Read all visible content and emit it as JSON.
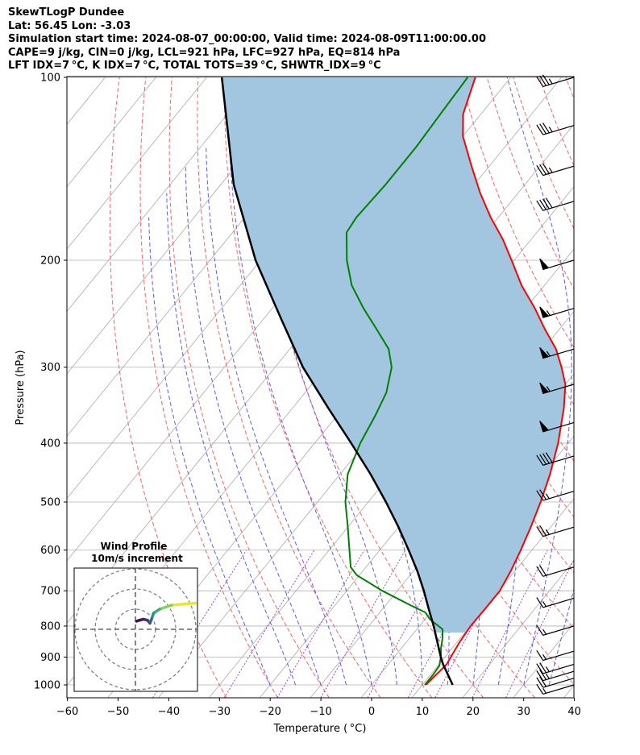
{
  "header": {
    "line1": "SkewTLogP Dundee",
    "line2": "Lat: 56.45   Lon: -3.03",
    "line3": "Simulation start time: 2024-08-07_00:00:00, Valid time: 2024-08-09T11:00:00.00",
    "line4": "CAPE=9 j/kg, CIN=0 j/kg, LCL=921 hPa, LFC=927 hPa, EQ=814 hPa",
    "line5": "LFT IDX=7 °C, K IDX=7 °C, TOTAL TOTS=39 °C, SHWTR_IDX=9 °C"
  },
  "colors": {
    "temperature": "#ff0000",
    "dewpoint": "#008000",
    "parcel": "#000000",
    "cape_fill": "#a3c6e0",
    "dry_adiabat": "#ff6060",
    "moist_adiabat": "#5a5aff",
    "isotherm": "#aaaaaa",
    "mixing_ratio": "#9933cc"
  },
  "chart_data": {
    "type": "skewt",
    "xlabel": "Temperature ( °C)",
    "ylabel": "Pressure (hPa)",
    "xlim": [
      -60,
      40
    ],
    "ylim": [
      1040,
      100
    ],
    "xticks": [
      -60,
      -50,
      -40,
      -30,
      -20,
      -10,
      0,
      10,
      20,
      30,
      40
    ],
    "yticks": [
      100,
      200,
      300,
      400,
      500,
      600,
      700,
      800,
      900,
      1000
    ],
    "grid": true,
    "series": [
      {
        "name": "temperature",
        "points": [
          [
            1000,
            10.7
          ],
          [
            925,
            11.5
          ],
          [
            880,
            10.9
          ],
          [
            850,
            10.5
          ],
          [
            800,
            10.1
          ],
          [
            750,
            10.2
          ],
          [
            700,
            10.2
          ],
          [
            650,
            9.2
          ],
          [
            600,
            7.8
          ],
          [
            550,
            6.1
          ],
          [
            500,
            4.0
          ],
          [
            450,
            1.4
          ],
          [
            400,
            -2.0
          ],
          [
            350,
            -6.5
          ],
          [
            320,
            -10.0
          ],
          [
            300,
            -13.5
          ],
          [
            280,
            -17.5
          ],
          [
            260,
            -22.8
          ],
          [
            240,
            -28.2
          ],
          [
            220,
            -34.5
          ],
          [
            200,
            -40.5
          ],
          [
            185,
            -45.5
          ],
          [
            170,
            -51.5
          ],
          [
            155,
            -57.5
          ],
          [
            140,
            -63.5
          ],
          [
            125,
            -70.0
          ],
          [
            115,
            -73.5
          ],
          [
            100,
            -77.0
          ]
        ]
      },
      {
        "name": "dewpoint",
        "points": [
          [
            1000,
            10.5
          ],
          [
            960,
            10.5
          ],
          [
            930,
            10.3
          ],
          [
            900,
            9.2
          ],
          [
            870,
            7.8
          ],
          [
            840,
            6.6
          ],
          [
            810,
            5.1
          ],
          [
            780,
            1.0
          ],
          [
            760,
            -1.0
          ],
          [
            740,
            -5.0
          ],
          [
            700,
            -13.0
          ],
          [
            660,
            -20.5
          ],
          [
            640,
            -23.0
          ],
          [
            600,
            -26.0
          ],
          [
            550,
            -30.0
          ],
          [
            500,
            -34.5
          ],
          [
            450,
            -38.5
          ],
          [
            400,
            -41.0
          ],
          [
            360,
            -42.5
          ],
          [
            330,
            -44.0
          ],
          [
            300,
            -47.0
          ],
          [
            280,
            -50.5
          ],
          [
            260,
            -56.0
          ],
          [
            240,
            -62.0
          ],
          [
            220,
            -68.0
          ],
          [
            200,
            -73.0
          ],
          [
            180,
            -77.5
          ],
          [
            170,
            -78.0
          ],
          [
            150,
            -77.5
          ],
          [
            130,
            -77.5
          ],
          [
            115,
            -78.0
          ],
          [
            100,
            -78.5
          ]
        ]
      },
      {
        "name": "parcel",
        "points": [
          [
            1000,
            16.0
          ],
          [
            925,
            10.8
          ],
          [
            900,
            9.2
          ],
          [
            850,
            6.1
          ],
          [
            800,
            2.8
          ],
          [
            750,
            -0.9
          ],
          [
            700,
            -4.8
          ],
          [
            650,
            -9.2
          ],
          [
            600,
            -14.3
          ],
          [
            550,
            -20.0
          ],
          [
            500,
            -26.5
          ],
          [
            450,
            -34.0
          ],
          [
            400,
            -42.8
          ],
          [
            350,
            -53.0
          ],
          [
            300,
            -64.5
          ],
          [
            250,
            -76.5
          ],
          [
            200,
            -91.0
          ],
          [
            150,
            -107.5
          ],
          [
            100,
            -127.0
          ]
        ]
      }
    ],
    "wind_barbs": [
      {
        "p": 100,
        "kt": 35
      },
      {
        "p": 120,
        "kt": 35
      },
      {
        "p": 140,
        "kt": 35
      },
      {
        "p": 160,
        "kt": 40
      },
      {
        "p": 200,
        "kt": 50
      },
      {
        "p": 240,
        "kt": 55
      },
      {
        "p": 280,
        "kt": 55
      },
      {
        "p": 320,
        "kt": 55
      },
      {
        "p": 370,
        "kt": 50
      },
      {
        "p": 420,
        "kt": 40
      },
      {
        "p": 480,
        "kt": 25
      },
      {
        "p": 550,
        "kt": 25
      },
      {
        "p": 640,
        "kt": 20
      },
      {
        "p": 720,
        "kt": 15
      },
      {
        "p": 800,
        "kt": 15
      },
      {
        "p": 880,
        "kt": 15
      },
      {
        "p": 925,
        "kt": 25
      },
      {
        "p": 950,
        "kt": 25
      },
      {
        "p": 975,
        "kt": 20
      },
      {
        "p": 1000,
        "kt": 15
      }
    ],
    "hodograph": {
      "title": "Wind Profile",
      "subtitle": "10m/s increment",
      "rings": 3,
      "points": [
        [
          3.0,
          1.3
        ],
        [
          1.8,
          1.2
        ],
        [
          1.2,
          1.0
        ],
        [
          0.9,
          0.8
        ],
        [
          0.8,
          0.5
        ],
        [
          0.72,
          0.3
        ],
        [
          0.6,
          0.45
        ],
        [
          0.4,
          0.5
        ],
        [
          0.2,
          0.45
        ],
        [
          0.05,
          0.4
        ]
      ]
    }
  }
}
